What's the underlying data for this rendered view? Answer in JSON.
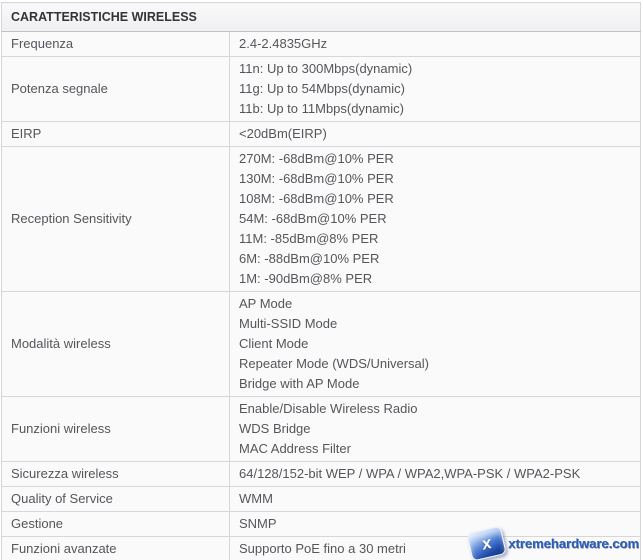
{
  "table": {
    "header": "CARATTERISTICHE WIRELESS",
    "rows": [
      {
        "label": "Frequenza",
        "values": [
          "2.4-2.4835GHz"
        ]
      },
      {
        "label": "Potenza segnale",
        "values": [
          "11n: Up to 300Mbps(dynamic)",
          "11g: Up to 54Mbps(dynamic)",
          "11b: Up to 11Mbps(dynamic)"
        ]
      },
      {
        "label": "EIRP",
        "values": [
          "<20dBm(EIRP)"
        ]
      },
      {
        "label": "Reception Sensitivity",
        "values": [
          "270M: -68dBm@10% PER",
          "130M: -68dBm@10% PER",
          "108M: -68dBm@10% PER",
          "54M: -68dBm@10% PER",
          "11M: -85dBm@8% PER",
          "6M: -88dBm@10% PER",
          "1M: -90dBm@8% PER"
        ]
      },
      {
        "label": "Modalità wireless",
        "values": [
          "AP Mode",
          "Multi-SSID Mode",
          "Client Mode",
          "Repeater Mode (WDS/Universal)",
          "Bridge with AP Mode"
        ]
      },
      {
        "label": "Funzioni wireless",
        "values": [
          "Enable/Disable Wireless Radio",
          "WDS Bridge",
          "MAC Address Filter"
        ]
      },
      {
        "label": "Sicurezza wireless",
        "values": [
          "64/128/152-bit WEP / WPA / WPA2,WPA-PSK / WPA2-PSK"
        ]
      },
      {
        "label": "Quality of Service",
        "values": [
          "WMM"
        ]
      },
      {
        "label": "Gestione",
        "values": [
          "SNMP"
        ]
      },
      {
        "label": "Funzioni avanzate",
        "values": [
          "Supporto PoE fino a 30 metri"
        ]
      }
    ]
  },
  "watermark": {
    "text": "xtremehardware.com",
    "icon": "xtremehardware-logo-icon",
    "icon_glyph": "x",
    "accent_color": "#2d5cb8"
  },
  "colors": {
    "table_background": "#fafafb",
    "header_background_top": "#f9f9fa",
    "header_background_bottom": "#efeff1",
    "header_text": "#333437",
    "cell_text": "#55565a",
    "border": "#d7d7db",
    "outer_border": "#c6c6ca",
    "logo_blue": "#2c5cb8"
  }
}
